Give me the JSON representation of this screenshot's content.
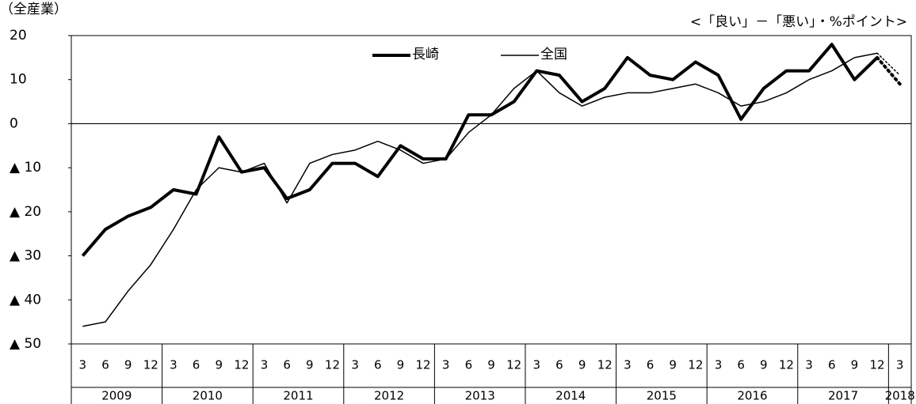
{
  "chart_data": {
    "type": "line",
    "title": "（全産業）",
    "subtitle": "<「良い」－「悪い」・%ポイント>",
    "categories": [
      "3",
      "6",
      "9",
      "12",
      "3",
      "6",
      "9",
      "12",
      "3",
      "6",
      "9",
      "12",
      "3",
      "6",
      "9",
      "12",
      "3",
      "6",
      "9",
      "12",
      "3",
      "6",
      "9",
      "12",
      "3",
      "6",
      "9",
      "12",
      "3",
      "6",
      "9",
      "12",
      "3",
      "6",
      "9",
      "12",
      "3"
    ],
    "years": [
      "2009",
      "2010",
      "2011",
      "2012",
      "2013",
      "2014",
      "2015",
      "2016",
      "2017",
      "2018"
    ],
    "dotted_from": 35,
    "series": [
      {
        "name": "長崎",
        "color": "#000000",
        "width": 4,
        "values": [
          -30,
          -24,
          -21,
          -19,
          -15,
          -16,
          -3,
          -11,
          -10,
          -17,
          -15,
          -9,
          -9,
          -12,
          -5,
          -8,
          -8,
          2,
          2,
          5,
          12,
          11,
          5,
          8,
          15,
          11,
          10,
          14,
          11,
          1,
          8,
          12,
          12,
          18,
          10,
          15,
          9
        ]
      },
      {
        "name": "全国",
        "color": "#000000",
        "width": 1.5,
        "values": [
          -46,
          -45,
          -38,
          -32,
          -24,
          -15,
          -10,
          -11,
          -9,
          -18,
          -9,
          -7,
          -6,
          -4,
          -6,
          -9,
          -8,
          -2,
          2,
          8,
          12,
          7,
          4,
          6,
          7,
          7,
          8,
          9,
          7,
          4,
          5,
          7,
          10,
          12,
          15,
          16,
          11
        ]
      }
    ],
    "ylim": [
      -50,
      20
    ],
    "yticks": [
      {
        "value": -50,
        "label": "▲ 50"
      },
      {
        "value": -40,
        "label": "▲ 40"
      },
      {
        "value": -30,
        "label": "▲ 30"
      },
      {
        "value": -20,
        "label": "▲ 20"
      },
      {
        "value": -10,
        "label": "▲ 10"
      },
      0,
      10,
      20
    ],
    "zero_line": true
  }
}
